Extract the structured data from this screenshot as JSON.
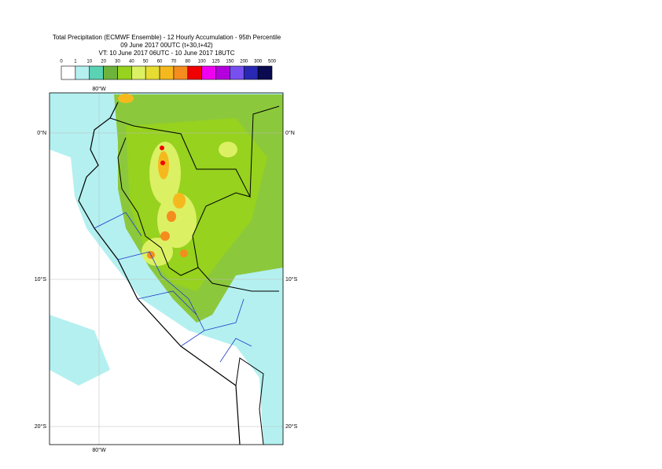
{
  "header": {
    "title": "Total Precipitation (ECMWF Ensemble) - 12 Hourly Accumulation - 95th Percentile",
    "run": "09 June 2017 00UTC (t+30,t+42)",
    "valid": "VT: 10 June 2017 06UTC - 10 June 2017 18UTC"
  },
  "legend": {
    "labels": [
      "0",
      "1",
      "10",
      "20",
      "30",
      "40",
      "50",
      "60",
      "70",
      "80",
      "100",
      "125",
      "150",
      "200",
      "300",
      "500"
    ],
    "colors": [
      "#ffffff",
      "#b4f0f0",
      "#5ad2b4",
      "#6eb43c",
      "#96d21e",
      "#dcf064",
      "#e6dc32",
      "#f5b91e",
      "#f58c1e",
      "#f00000",
      "#f000f0",
      "#b400dc",
      "#7850f0",
      "#2828b4",
      "#0a0a50"
    ]
  },
  "map": {
    "lon_labels": [
      "80°W"
    ],
    "lat_labels": [
      "0°N",
      "10°S",
      "20°S"
    ]
  }
}
